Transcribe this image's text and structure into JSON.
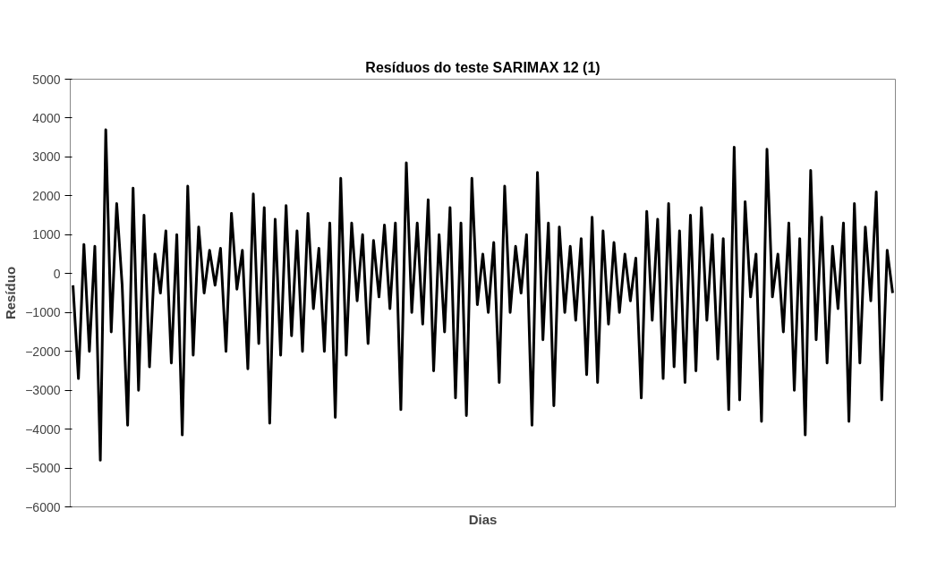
{
  "chart_data": {
    "type": "line",
    "title": "Resíduos do teste SARIMAX 12 (1)",
    "xlabel": "Dias",
    "ylabel": "Resíduo",
    "categories": [
      null,
      null,
      null,
      null,
      null,
      null,
      null,
      null,
      null,
      null,
      null,
      null,
      null,
      null,
      null,
      null,
      null,
      null,
      null,
      null,
      null,
      null,
      null,
      null,
      null,
      null,
      null,
      null,
      null,
      null,
      null,
      null,
      null,
      null,
      null,
      null,
      null,
      null,
      null,
      null,
      null,
      null,
      null,
      null,
      null,
      null,
      null,
      null,
      null,
      null,
      null,
      null,
      null,
      null,
      null,
      null,
      null,
      null,
      null,
      null,
      null,
      null,
      null,
      null,
      null,
      null,
      null,
      null,
      null,
      null,
      null,
      null,
      null,
      null,
      null,
      null,
      null,
      null,
      null,
      null,
      null,
      null,
      null,
      null,
      null,
      null,
      null,
      null,
      null,
      null,
      null,
      null,
      null,
      null,
      null,
      null,
      null,
      null,
      null,
      null,
      null,
      null,
      null,
      null,
      null,
      null,
      null,
      null,
      null,
      null,
      null,
      null,
      null,
      null,
      null,
      null,
      null,
      null,
      null,
      null,
      null,
      null,
      null,
      null,
      null,
      null,
      null,
      null,
      null,
      null,
      null,
      null,
      null,
      null,
      null,
      null,
      null,
      null,
      null,
      null,
      null,
      null,
      null,
      null,
      null,
      null,
      null,
      null,
      null,
      null,
      null
    ],
    "series": [
      {
        "color": "#000000",
        "values": [
          -300,
          -2700,
          750,
          -2000,
          700,
          -4800,
          3700,
          -1500,
          1800,
          -300,
          -3900,
          2200,
          -3000,
          1500,
          -2400,
          500,
          -500,
          1100,
          -2300,
          1000,
          -4150,
          2250,
          -2100,
          1200,
          -500,
          600,
          -300,
          650,
          -2000,
          1550,
          -400,
          600,
          -2450,
          2050,
          -1800,
          1700,
          -3850,
          1400,
          -2100,
          1750,
          -1600,
          1100,
          -2000,
          1550,
          -900,
          650,
          -2000,
          1300,
          -3700,
          2450,
          -2100,
          1300,
          -700,
          1000,
          -1800,
          850,
          -600,
          1250,
          -900,
          1300,
          -3500,
          2850,
          -1000,
          1300,
          -1300,
          1900,
          -2500,
          1000,
          -1500,
          1700,
          -3200,
          1300,
          -3650,
          2450,
          -800,
          500,
          -1000,
          800,
          -2800,
          2250,
          -1000,
          700,
          -500,
          1000,
          -3900,
          2600,
          -1700,
          1300,
          -3400,
          1200,
          -1000,
          700,
          -1200,
          900,
          -2600,
          1450,
          -2800,
          1100,
          -1300,
          800,
          -1000,
          500,
          -700,
          400,
          -3200,
          1600,
          -1200,
          1400,
          -2700,
          1800,
          -2400,
          1100,
          -2800,
          1500,
          -2500,
          1700,
          -1200,
          1000,
          -2200,
          900,
          -3500,
          3250,
          -3250,
          1850,
          -600,
          500,
          -3800,
          3200,
          -600,
          500,
          -1500,
          1300,
          -3000,
          900,
          -4150,
          2650,
          -1700,
          1450,
          -2300,
          700,
          -900,
          1300,
          -3800,
          1800,
          -2300,
          1200,
          -700,
          2100,
          -3250,
          600,
          -500
        ]
      }
    ],
    "ylim": [
      -6000,
      5000
    ],
    "yticks": [
      -6000,
      -5000,
      -4000,
      -3000,
      -2000,
      -1000,
      0,
      1000,
      2000,
      3000,
      4000,
      5000
    ],
    "grid": false
  }
}
